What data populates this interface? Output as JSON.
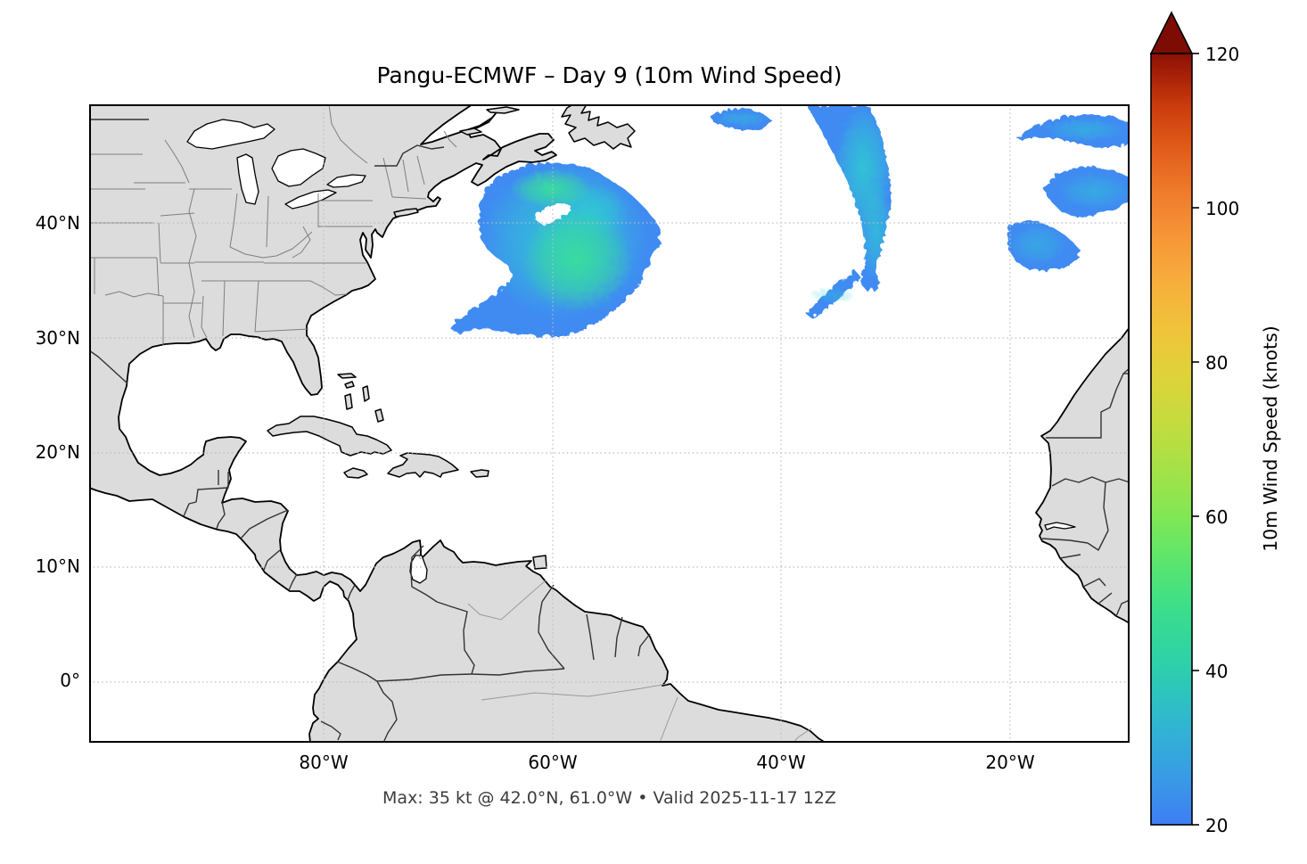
{
  "figure": {
    "title": "Pangu-ECMWF – Day 9 (10m Wind Speed)",
    "caption": "Max: 35 kt @ 42.0°N, 61.0°W • Valid 2025-11-17 12Z"
  },
  "map": {
    "x_ticks": [
      "80°W",
      "60°W",
      "40°W",
      "20°W"
    ],
    "y_ticks": [
      "40°N",
      "30°N",
      "20°N",
      "10°N",
      "0°"
    ]
  },
  "colorbar": {
    "label": "10m Wind Speed (knots)",
    "ticks": [
      "120",
      "100",
      "80",
      "60",
      "40",
      "20"
    ],
    "min": 20,
    "max": 120,
    "extend": "max",
    "stops": [
      {
        "t": 0.0,
        "c": "#3E7EF5"
      },
      {
        "t": 0.06,
        "c": "#399AE5"
      },
      {
        "t": 0.12,
        "c": "#31B2D5"
      },
      {
        "t": 0.17,
        "c": "#2EC4BE"
      },
      {
        "t": 0.22,
        "c": "#2FD3A4"
      },
      {
        "t": 0.28,
        "c": "#3BDE8B"
      },
      {
        "t": 0.34,
        "c": "#5BE56E"
      },
      {
        "t": 0.4,
        "c": "#81E755"
      },
      {
        "t": 0.46,
        "c": "#A5E147"
      },
      {
        "t": 0.52,
        "c": "#C3DC3F"
      },
      {
        "t": 0.58,
        "c": "#DED33A"
      },
      {
        "t": 0.64,
        "c": "#EFC43A"
      },
      {
        "t": 0.7,
        "c": "#F7AF3C"
      },
      {
        "t": 0.76,
        "c": "#F69738"
      },
      {
        "t": 0.82,
        "c": "#EF7B2B"
      },
      {
        "t": 0.88,
        "c": "#E05A1A"
      },
      {
        "t": 0.93,
        "c": "#CB3D0E"
      },
      {
        "t": 0.97,
        "c": "#A82208"
      },
      {
        "t": 1.0,
        "c": "#8B1105"
      }
    ]
  },
  "colors": {
    "land": "#DCDCDC",
    "coastline": "#000000",
    "country_border": "#333333",
    "state_border": "#7F7F7F",
    "river": "#9A9A9A",
    "gridline": "#BDBDBD",
    "frame": "#000000",
    "wind_blue": "#3F8BF2",
    "wind_cyan": "#2FC8D2",
    "wind_green": "#39DE9B",
    "cb_over": "#7D0D04",
    "title_text": "#000000",
    "tick_text": "#000000",
    "caption_text": "#3D3D3D"
  },
  "chart_data": {
    "type": "heatmap",
    "subtype": "filled_contour_weather_map",
    "title": "Pangu-ECMWF – Day 9 (10m Wind Speed)",
    "model": "Pangu-ECMWF",
    "lead_time": "Day 9",
    "field": "10m Wind Speed",
    "units": "knots",
    "valid_time": "2025-11-17 12Z",
    "max_value": {
      "value_kt": 35,
      "lat": "42.0°N",
      "lon": "61.0°W"
    },
    "colorbar": {
      "label": "10m Wind Speed (knots)",
      "range": [
        20,
        120
      ],
      "tick_interval": 20,
      "extend": "max"
    },
    "map_extent": {
      "lon_west": "100.4°W",
      "lon_east": "9.8°W",
      "lat_south": "5.3°S",
      "lat_north": "50.4°N"
    },
    "graticule": {
      "lon_lines_w": [
        80,
        60,
        40,
        20
      ],
      "lat_lines_n": [
        40,
        30,
        20,
        10,
        0
      ],
      "style": "dotted"
    },
    "wind_areas": [
      {
        "region": "Northwest Atlantic SE of Nova Scotia",
        "approx_center": "37°N 58°W",
        "peak_kt": 35,
        "note": "large comma-shaped swath ~20-35 kt with green core and small white eye near 40.5°N 61.5°W"
      },
      {
        "region": "Central North Atlantic arc from top edge",
        "approx_center": "44°N 32.5°W",
        "peak_kt": 28,
        "note": "elongated curved band narrowing southward to ~35°N"
      },
      {
        "region": "Small streak",
        "approx_center": "35.5°N 36°W",
        "peak_kt": 24
      },
      {
        "region": "Small patch",
        "approx_center": "49.5°N 38°W",
        "peak_kt": 24
      },
      {
        "region": "Northeast Atlantic patches (clipped by right edge)",
        "approx_center": "44–50°N 10–20°W",
        "peak_kt": 26,
        "note": "three lobes: two elongated near top-right corner, one rounded at 40°N 20°W"
      }
    ]
  }
}
